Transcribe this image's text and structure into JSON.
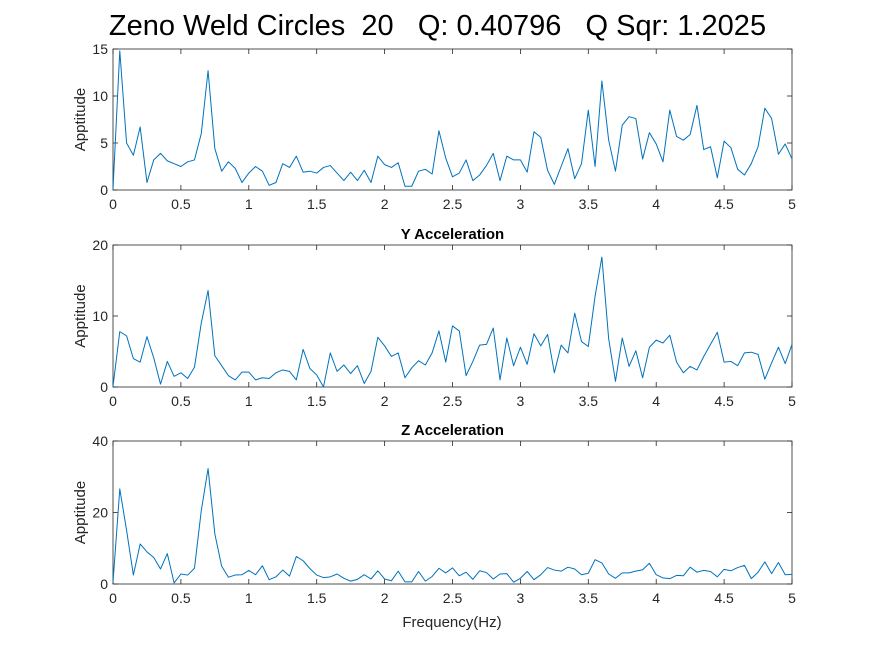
{
  "title": "Zeno Weld Circles  20   Q: 0.40796   Q Sqr: 1.2025",
  "xlabel": "Frequency(Hz)",
  "chart_data": [
    {
      "type": "line",
      "title": "",
      "ylabel": "Apptitude",
      "xlim": [
        0,
        5
      ],
      "ylim": [
        0,
        15
      ],
      "xticks": [
        "0",
        "0.5",
        "1",
        "1.5",
        "2",
        "2.5",
        "3",
        "3.5",
        "4",
        "4.5",
        "5"
      ],
      "yticks": [
        "0",
        "5",
        "10",
        "15"
      ],
      "color": "#0072BD",
      "x_start": 0,
      "x_step": 0.05,
      "values": [
        0.1,
        14.8,
        5.0,
        3.7,
        6.7,
        0.8,
        3.2,
        3.9,
        3.1,
        2.8,
        2.5,
        3.0,
        3.2,
        6.0,
        12.7,
        4.4,
        2.0,
        3.0,
        2.3,
        0.8,
        1.8,
        2.5,
        2.0,
        0.5,
        0.8,
        2.8,
        2.4,
        3.6,
        1.9,
        2.0,
        1.8,
        2.4,
        2.6,
        1.8,
        1.0,
        1.9,
        1.0,
        2.1,
        0.8,
        3.6,
        2.7,
        2.4,
        2.9,
        0.4,
        0.4,
        2.0,
        2.2,
        1.7,
        6.3,
        3.4,
        1.4,
        1.8,
        3.2,
        1.0,
        1.6,
        2.6,
        3.9,
        1.0,
        3.6,
        3.2,
        3.2,
        1.9,
        6.2,
        5.6,
        2.1,
        0.6,
        2.5,
        4.4,
        1.2,
        2.8,
        8.5,
        2.5,
        11.6,
        5.3,
        2.0,
        6.9,
        7.8,
        7.6,
        3.3,
        6.1,
        4.9,
        3.0,
        8.5,
        5.7,
        5.3,
        5.9,
        9.0,
        4.3,
        4.6,
        1.3,
        5.2,
        4.5,
        2.2,
        1.6,
        2.8,
        4.6,
        8.7,
        7.6,
        3.8,
        4.9,
        3.3
      ]
    },
    {
      "type": "line",
      "title": "Y Acceleration",
      "ylabel": "Apptitude",
      "xlim": [
        0,
        5
      ],
      "ylim": [
        0,
        20
      ],
      "xticks": [
        "0",
        "0.5",
        "1",
        "1.5",
        "2",
        "2.5",
        "3",
        "3.5",
        "4",
        "4.5",
        "5"
      ],
      "yticks": [
        "0",
        "10",
        "20"
      ],
      "color": "#0072BD",
      "x_start": 0,
      "x_step": 0.05,
      "values": [
        0.1,
        7.8,
        7.2,
        4.0,
        3.5,
        7.1,
        4.1,
        0.4,
        3.6,
        1.5,
        2.0,
        1.2,
        2.8,
        9.0,
        13.6,
        4.4,
        3.0,
        1.6,
        1.0,
        2.1,
        2.1,
        1.0,
        1.3,
        1.2,
        2.0,
        2.4,
        2.2,
        1.0,
        5.3,
        2.6,
        1.7,
        0.0,
        4.8,
        2.2,
        3.1,
        1.9,
        3.0,
        0.5,
        2.2,
        7.0,
        5.8,
        4.3,
        4.8,
        1.3,
        2.7,
        3.7,
        3.1,
        4.8,
        7.9,
        3.5,
        8.6,
        7.9,
        1.6,
        3.6,
        5.9,
        6.0,
        8.3,
        1.0,
        6.9,
        3.0,
        5.6,
        3.2,
        7.5,
        5.8,
        7.4,
        2.0,
        5.9,
        4.8,
        10.4,
        6.4,
        5.7,
        12.8,
        18.3,
        6.8,
        0.8,
        6.9,
        2.9,
        5.1,
        1.3,
        5.6,
        6.6,
        6.2,
        7.3,
        3.5,
        2.0,
        2.9,
        2.4,
        4.3,
        6.0,
        7.7,
        3.5,
        3.6,
        3.0,
        4.8,
        4.9,
        4.6,
        1.1,
        3.4,
        5.6,
        3.3,
        6.0
      ]
    },
    {
      "type": "line",
      "title": "Z Acceleration",
      "ylabel": "Apptitude",
      "xlim": [
        0,
        5
      ],
      "ylim": [
        0,
        40
      ],
      "xticks": [
        "0",
        "0.5",
        "1",
        "1.5",
        "2",
        "2.5",
        "3",
        "3.5",
        "4",
        "4.5",
        "5"
      ],
      "yticks": [
        "0",
        "20",
        "40"
      ],
      "color": "#0072BD",
      "x_start": 0,
      "x_step": 0.05,
      "values": [
        0.5,
        26.6,
        15.0,
        2.5,
        11.2,
        9.0,
        7.4,
        4.2,
        8.5,
        0.3,
        2.8,
        2.5,
        4.4,
        20.5,
        32.3,
        14.0,
        5.0,
        1.9,
        2.5,
        2.6,
        3.8,
        2.6,
        5.1,
        1.2,
        2.0,
        3.9,
        2.2,
        7.7,
        6.5,
        4.3,
        2.5,
        1.8,
        2.0,
        2.8,
        1.6,
        0.8,
        1.3,
        2.6,
        1.4,
        3.7,
        1.4,
        0.9,
        3.6,
        0.6,
        0.6,
        3.5,
        0.8,
        2.1,
        4.4,
        3.1,
        4.5,
        2.3,
        3.3,
        1.3,
        3.7,
        3.2,
        1.4,
        2.8,
        2.9,
        0.5,
        1.6,
        3.5,
        1.2,
        2.6,
        4.6,
        3.9,
        3.6,
        4.7,
        4.2,
        2.6,
        3.0,
        6.8,
        5.9,
        2.8,
        1.6,
        3.1,
        3.1,
        3.6,
        4.0,
        5.8,
        2.6,
        1.7,
        1.5,
        2.4,
        2.3,
        4.7,
        3.3,
        3.8,
        3.5,
        2.0,
        4.1,
        3.7,
        4.6,
        5.2,
        1.5,
        3.3,
        6.2,
        2.9,
        6.0,
        2.6,
        2.7
      ]
    }
  ]
}
